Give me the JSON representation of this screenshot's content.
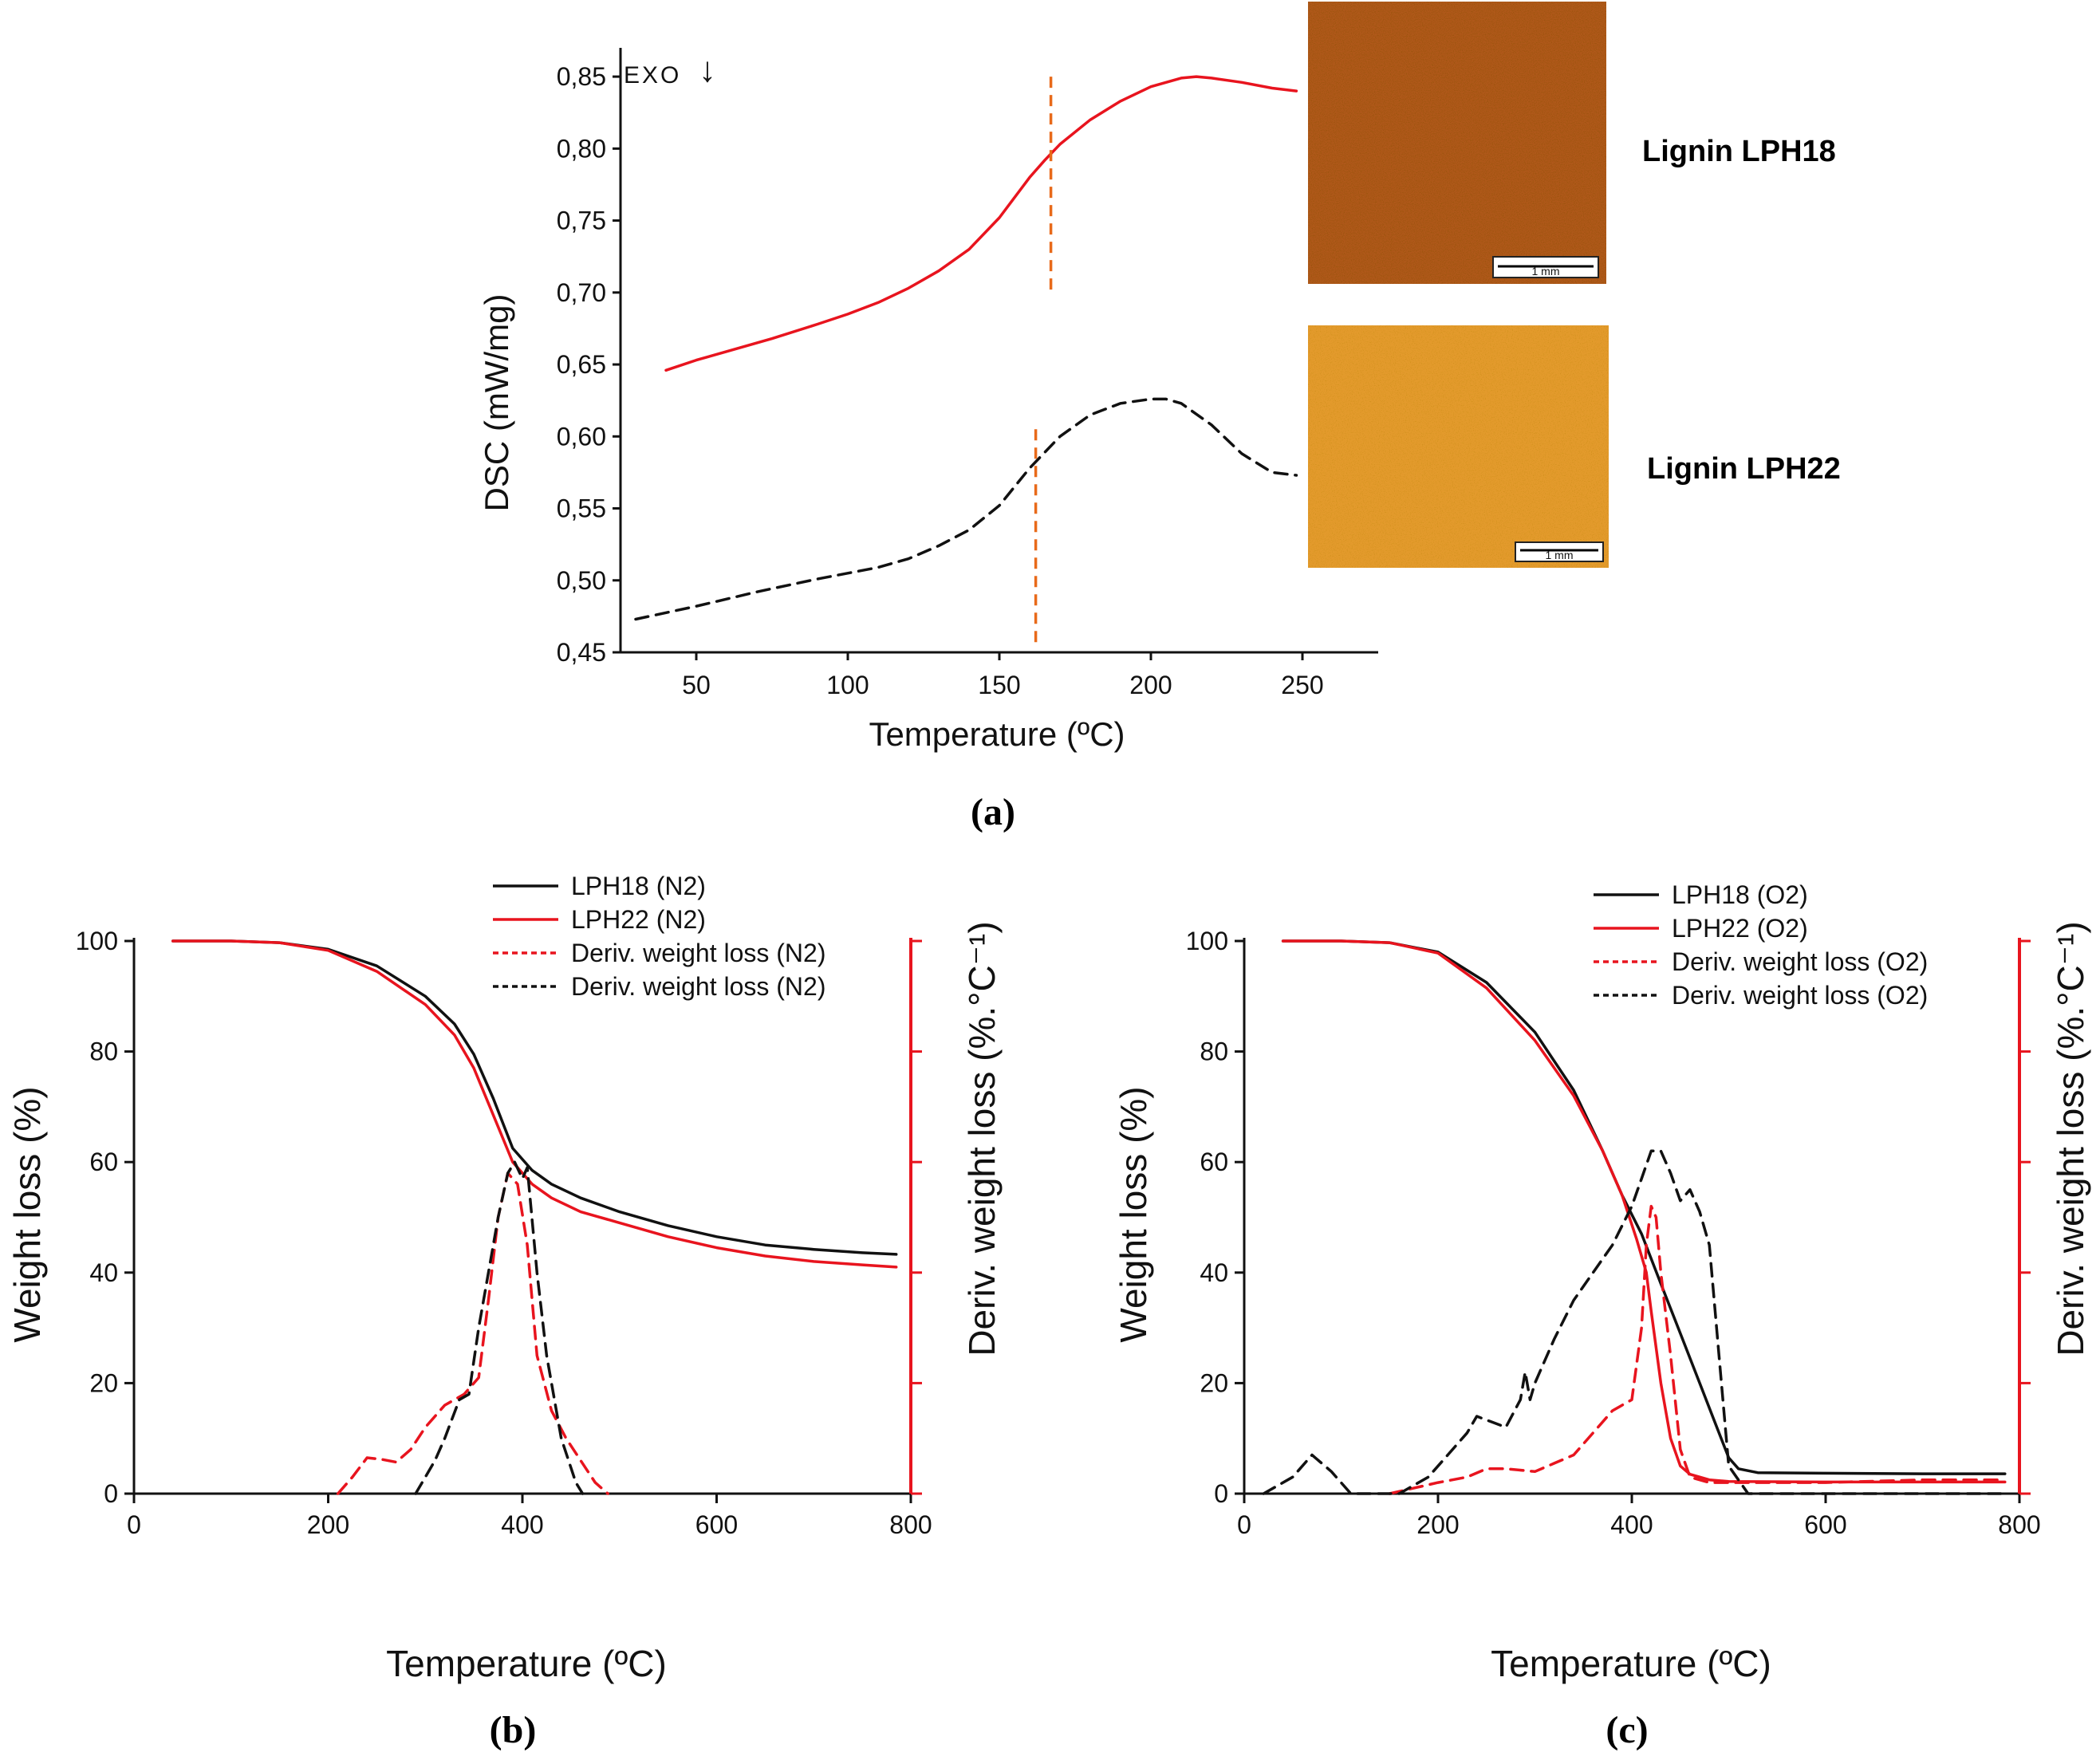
{
  "chart_data": [
    {
      "panel": "(a)",
      "type": "line",
      "xlabel": "Temperature (ºC)",
      "ylabel": "DSC (mW/mg)",
      "xlim": [
        25,
        275
      ],
      "ylim": [
        0.45,
        0.87
      ],
      "xticks": [
        "50",
        "100",
        "150",
        "200",
        "250"
      ],
      "yticks": [
        "0,45",
        "0,50",
        "0,55",
        "0,60",
        "0,65",
        "0,70",
        "0,75",
        "0,80",
        "0,85"
      ],
      "annotation": "EXO",
      "annotation_arrow": "↓",
      "series": [
        {
          "name": "Lignin LPH18",
          "color": "#e8141e",
          "style": "solid",
          "x": [
            40,
            50,
            60,
            75,
            90,
            100,
            110,
            120,
            130,
            140,
            150,
            160,
            165,
            170,
            180,
            190,
            200,
            210,
            215,
            220,
            230,
            240,
            248
          ],
          "y": [
            0.646,
            0.653,
            0.659,
            0.668,
            0.678,
            0.685,
            0.693,
            0.703,
            0.715,
            0.73,
            0.752,
            0.78,
            0.792,
            0.803,
            0.82,
            0.833,
            0.843,
            0.849,
            0.85,
            0.849,
            0.846,
            0.842,
            0.84
          ]
        },
        {
          "name": "Lignin LPH22",
          "color": "#111111",
          "style": "dashed",
          "x": [
            30,
            50,
            70,
            90,
            110,
            120,
            130,
            140,
            150,
            160,
            170,
            180,
            190,
            200,
            205,
            210,
            220,
            230,
            240,
            248
          ],
          "y": [
            0.473,
            0.482,
            0.492,
            0.501,
            0.509,
            0.515,
            0.524,
            0.535,
            0.552,
            0.578,
            0.6,
            0.615,
            0.623,
            0.626,
            0.626,
            0.623,
            0.608,
            0.588,
            0.575,
            0.573
          ]
        }
      ],
      "vlines": [
        {
          "x": 167,
          "y0": 0.7,
          "y1": 0.85,
          "color": "#e86a1a"
        },
        {
          "x": 162,
          "y0": 0.455,
          "y1": 0.605,
          "color": "#e86a1a"
        }
      ],
      "micrographs": [
        {
          "label": "Lignin LPH18",
          "scale_bar": "1 mm",
          "base_color": "#b0581a"
        },
        {
          "label": "Lignin LPH22",
          "scale_bar": "1 mm",
          "base_color": "#e39a2c"
        }
      ]
    },
    {
      "panel": "(b)",
      "type": "line",
      "xlabel": "Temperature (ºC)",
      "ylabel": "Weight loss (%)",
      "ylabel_right": "Deriv. weight loss (%.°C⁻¹)",
      "xlim": [
        0,
        800
      ],
      "ylim": [
        0,
        100
      ],
      "xticks": [
        "0",
        "200",
        "400",
        "600",
        "800"
      ],
      "yticks": [
        "0",
        "20",
        "40",
        "60",
        "80",
        "100"
      ],
      "legend": [
        {
          "label": "LPH18 (N2)",
          "color": "#111111",
          "style": "solid"
        },
        {
          "label": "LPH22 (N2)",
          "color": "#e8141e",
          "style": "solid"
        },
        {
          "label": "Deriv. weight loss (N2)",
          "color": "#e8141e",
          "style": "dashed"
        },
        {
          "label": "Deriv. weight loss (N2)",
          "color": "#111111",
          "style": "dashed"
        }
      ],
      "series": [
        {
          "name": "LPH18 (N2)",
          "color": "#111111",
          "style": "solid",
          "x": [
            40,
            100,
            150,
            200,
            250,
            300,
            330,
            350,
            370,
            390,
            410,
            430,
            460,
            500,
            550,
            600,
            650,
            700,
            750,
            785
          ],
          "y": [
            100,
            100,
            99.7,
            98.5,
            95.5,
            90,
            85,
            79.5,
            71.5,
            62.5,
            58.5,
            56,
            53.5,
            51,
            48.5,
            46.5,
            45,
            44.2,
            43.6,
            43.3
          ]
        },
        {
          "name": "LPH22 (N2)",
          "color": "#e8141e",
          "style": "solid",
          "x": [
            40,
            100,
            150,
            200,
            250,
            300,
            330,
            350,
            370,
            390,
            410,
            430,
            460,
            500,
            550,
            600,
            650,
            700,
            750,
            785
          ],
          "y": [
            100,
            100,
            99.7,
            98.3,
            94.5,
            88.5,
            83,
            77,
            68.5,
            60,
            56,
            53.5,
            51,
            49,
            46.5,
            44.5,
            43,
            42,
            41.4,
            41
          ]
        },
        {
          "name": "Deriv. weight loss (N2) LPH22",
          "color": "#e8141e",
          "style": "dashed",
          "x": [
            210,
            225,
            240,
            255,
            270,
            285,
            300,
            320,
            340,
            355,
            365,
            375,
            385,
            395,
            405,
            415,
            430,
            445,
            460,
            475,
            488
          ],
          "y": [
            0,
            3,
            6.5,
            6.2,
            5.7,
            8,
            12,
            16,
            18,
            21,
            35,
            50,
            58,
            56,
            45,
            25,
            15,
            10,
            6,
            2,
            0
          ]
        },
        {
          "name": "Deriv. weight loss (N2) LPH18",
          "color": "#111111",
          "style": "dashed",
          "x": [
            290,
            300,
            310,
            320,
            335,
            345,
            355,
            365,
            375,
            385,
            392,
            400,
            405,
            415,
            425,
            440,
            455,
            462
          ],
          "y": [
            0,
            3,
            6,
            10,
            17,
            18,
            30,
            40,
            50,
            58,
            60,
            57,
            59,
            40,
            25,
            10,
            2,
            0
          ]
        }
      ]
    },
    {
      "panel": "(c)",
      "type": "line",
      "xlabel": "Temperature (ºC)",
      "ylabel": "Weight loss (%)",
      "ylabel_right": "Deriv. weight loss (%.°C⁻¹)",
      "xlim": [
        0,
        800
      ],
      "ylim": [
        0,
        100
      ],
      "xticks": [
        "0",
        "200",
        "400",
        "600",
        "800"
      ],
      "yticks": [
        "0",
        "20",
        "40",
        "60",
        "80",
        "100"
      ],
      "legend": [
        {
          "label": "LPH18 (O2)",
          "color": "#111111",
          "style": "solid"
        },
        {
          "label": "LPH22 (O2)",
          "color": "#e8141e",
          "style": "solid"
        },
        {
          "label": "Deriv. weight loss (O2)",
          "color": "#e8141e",
          "style": "dashed"
        },
        {
          "label": "Deriv. weight loss (O2)",
          "color": "#111111",
          "style": "dashed"
        }
      ],
      "series": [
        {
          "name": "LPH18 (O2)",
          "color": "#111111",
          "style": "solid",
          "x": [
            40,
            100,
            150,
            200,
            250,
            300,
            340,
            370,
            390,
            410,
            430,
            450,
            470,
            490,
            500,
            510,
            530,
            600,
            700,
            785
          ],
          "y": [
            100,
            100,
            99.7,
            98,
            92.5,
            83.5,
            73,
            62,
            54,
            47,
            38,
            29,
            20,
            11,
            6.5,
            4.5,
            3.8,
            3.7,
            3.6,
            3.6
          ]
        },
        {
          "name": "LPH22 (O2)",
          "color": "#e8141e",
          "style": "solid",
          "x": [
            40,
            100,
            150,
            200,
            250,
            300,
            340,
            370,
            390,
            405,
            415,
            420,
            430,
            440,
            450,
            460,
            480,
            500,
            600,
            700,
            785
          ],
          "y": [
            100,
            100,
            99.7,
            97.8,
            91.5,
            82,
            72,
            62,
            54,
            46,
            40,
            33,
            20,
            10,
            5,
            3.5,
            2.5,
            2.2,
            2.1,
            2.1,
            2.1
          ]
        },
        {
          "name": "Deriv. weight loss (O2) LPH22",
          "color": "#e8141e",
          "style": "dashed",
          "x": [
            150,
            200,
            230,
            250,
            270,
            300,
            320,
            340,
            360,
            380,
            400,
            410,
            415,
            420,
            425,
            430,
            440,
            450,
            460,
            480,
            500,
            600,
            700,
            785
          ],
          "y": [
            0,
            2,
            3,
            4.5,
            4.5,
            4,
            5.5,
            7,
            11,
            15,
            17,
            30,
            45,
            52,
            50,
            40,
            25,
            8,
            3,
            2,
            2,
            2,
            2.5,
            2.5
          ]
        },
        {
          "name": "Deriv. weight loss (O2) LPH18",
          "color": "#111111",
          "style": "dashed",
          "x": [
            20,
            50,
            70,
            90,
            110,
            130,
            160,
            190,
            210,
            230,
            240,
            255,
            270,
            285,
            290,
            295,
            300,
            320,
            340,
            360,
            380,
            400,
            410,
            420,
            430,
            440,
            450,
            460,
            470,
            480,
            490,
            500,
            520,
            600,
            700,
            785
          ],
          "y": [
            0,
            3,
            7,
            4,
            0,
            0,
            0,
            3,
            7,
            11,
            14,
            13,
            12,
            17,
            22,
            17,
            20,
            28,
            35,
            40,
            45,
            52,
            57,
            62,
            62,
            58,
            53,
            55,
            51,
            45,
            25,
            5,
            0,
            0,
            0,
            0
          ]
        }
      ]
    }
  ]
}
